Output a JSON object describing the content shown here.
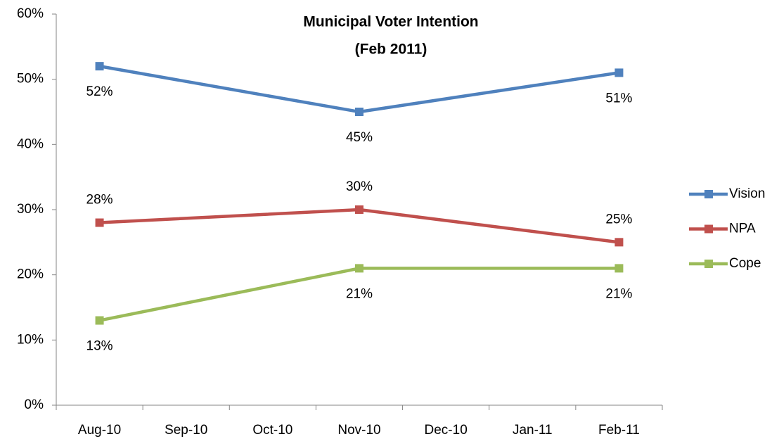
{
  "chart_data": {
    "type": "line",
    "title": "Municipal Voter Intention",
    "subtitle": "(Feb 2011)",
    "xlim": [
      "2010-08",
      "2011-02"
    ],
    "xticks": [
      {
        "value": "2010-08",
        "label": "Aug-10"
      },
      {
        "value": "2010-09",
        "label": "Sep-10"
      },
      {
        "value": "2010-10",
        "label": "Oct-10"
      },
      {
        "value": "2010-11",
        "label": "Nov-10"
      },
      {
        "value": "2010-12",
        "label": "Dec-10"
      },
      {
        "value": "2011-01",
        "label": "Jan-11"
      },
      {
        "value": "2011-02",
        "label": "Feb-11"
      }
    ],
    "x": [
      "2010-08",
      "2010-11",
      "2011-02"
    ],
    "series": [
      {
        "name": "Vision",
        "color": "#4f81bd",
        "values": [
          52,
          45,
          51
        ],
        "value_labels": [
          "52%",
          "45%",
          "51%"
        ],
        "label_position": "below"
      },
      {
        "name": "NPA",
        "color": "#c0504d",
        "values": [
          28,
          30,
          25
        ],
        "value_labels": [
          "28%",
          "30%",
          "25%"
        ],
        "label_position": "above"
      },
      {
        "name": "Cope",
        "color": "#9bbb59",
        "values": [
          13,
          21,
          21
        ],
        "value_labels": [
          "13%",
          "21%",
          "21%"
        ],
        "label_position": "below"
      }
    ],
    "ylim": [
      0,
      60
    ],
    "yticks": [
      {
        "value": 0,
        "label": "0%"
      },
      {
        "value": 10,
        "label": "10%"
      },
      {
        "value": 20,
        "label": "20%"
      },
      {
        "value": 30,
        "label": "30%"
      },
      {
        "value": 40,
        "label": "40%"
      },
      {
        "value": 50,
        "label": "50%"
      },
      {
        "value": 60,
        "label": "60%"
      }
    ],
    "grid": false,
    "legend": "right"
  }
}
